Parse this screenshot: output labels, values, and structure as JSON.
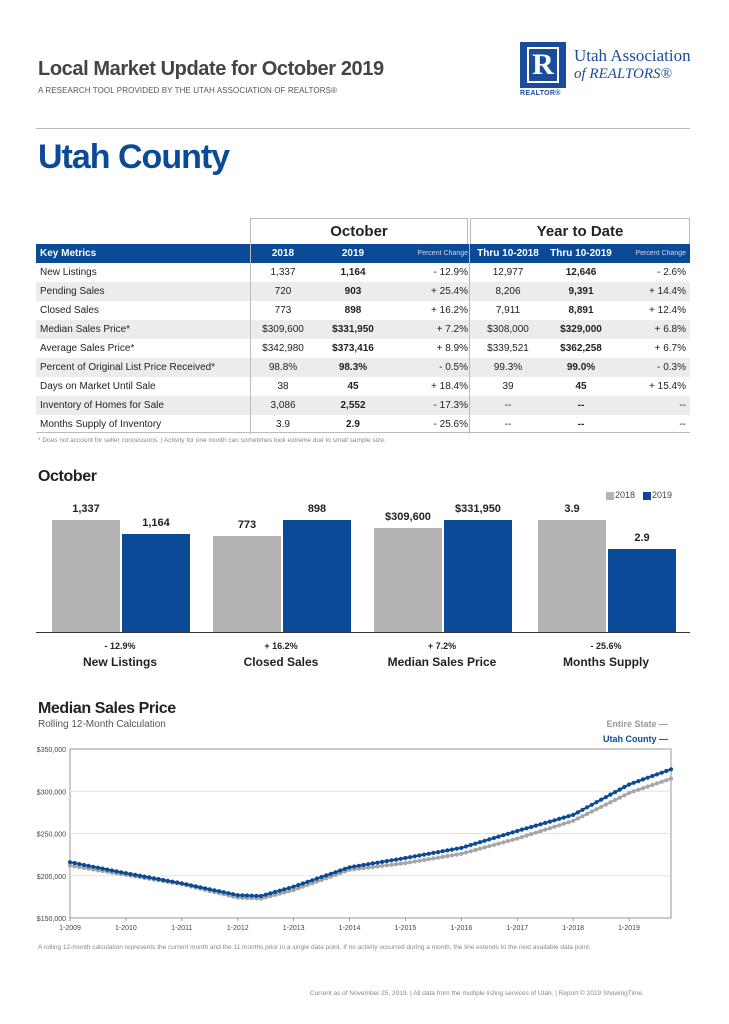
{
  "header": {
    "title": "Local Market Update for October 2019",
    "subtitle": "A RESEARCH TOOL PROVIDED BY THE UTAH ASSOCIATION OF REALTORS®",
    "county": "Utah County"
  },
  "logo": {
    "letter": "R",
    "realtor": "REALTOR®",
    "name_line1": "Utah Association",
    "name_line2": "of REALTORS®"
  },
  "table": {
    "group_october": "October",
    "group_ytd": "Year to Date",
    "headers": [
      "Key Metrics",
      "2018",
      "2019",
      "Percent Change",
      "Thru 10-2018",
      "Thru 10-2019",
      "Percent Change"
    ],
    "rows": [
      [
        "New Listings",
        "1,337",
        "1,164",
        "- 12.9%",
        "12,977",
        "12,646",
        "- 2.6%"
      ],
      [
        "Pending Sales",
        "720",
        "903",
        "+ 25.4%",
        "8,206",
        "9,391",
        "+ 14.4%"
      ],
      [
        "Closed Sales",
        "773",
        "898",
        "+ 16.2%",
        "7,911",
        "8,891",
        "+ 12.4%"
      ],
      [
        "Median Sales Price*",
        "$309,600",
        "$331,950",
        "+ 7.2%",
        "$308,000",
        "$329,000",
        "+ 6.8%"
      ],
      [
        "Average Sales Price*",
        "$342,980",
        "$373,416",
        "+ 8.9%",
        "$339,521",
        "$362,258",
        "+ 6.7%"
      ],
      [
        "Percent of Original List Price Received*",
        "98.8%",
        "98.3%",
        "- 0.5%",
        "99.3%",
        "99.0%",
        "- 0.3%"
      ],
      [
        "Days on Market Until Sale",
        "38",
        "45",
        "+ 18.4%",
        "39",
        "45",
        "+ 15.4%"
      ],
      [
        "Inventory of Homes for Sale",
        "3,086",
        "2,552",
        "- 17.3%",
        "--",
        "--",
        "--"
      ],
      [
        "Months Supply of Inventory",
        "3.9",
        "2.9",
        "- 25.6%",
        "--",
        "--",
        "--"
      ]
    ],
    "footnote": "* Does not account for seller concessions.  |  Activity for one month can sometimes look extreme due to small sample size."
  },
  "chart_data": [
    {
      "type": "bar",
      "title": "October",
      "legend": [
        "2018",
        "2019"
      ],
      "legend_position": "top-right",
      "colors": {
        "2018": "#b3b3b3",
        "2019": "#0b4a96"
      },
      "groups": [
        {
          "name": "New Listings",
          "values": [
            1337,
            1164
          ],
          "labels": [
            "1,337",
            "1,164"
          ],
          "pct": "- 12.9%"
        },
        {
          "name": "Closed Sales",
          "values": [
            773,
            898
          ],
          "labels": [
            "773",
            "898"
          ],
          "pct": "+ 16.2%"
        },
        {
          "name": "Median Sales Price",
          "values": [
            309600,
            331950
          ],
          "labels": [
            "$309,600",
            "$331,950"
          ],
          "pct": "+ 7.2%"
        },
        {
          "name": "Months Supply",
          "values": [
            3.9,
            2.9
          ],
          "labels": [
            "3.9",
            "2.9"
          ],
          "pct": "- 25.6%"
        }
      ]
    },
    {
      "type": "line",
      "title": "Median Sales Price",
      "subtitle": "Rolling 12-Month Calculation",
      "y_ticks": [
        "$350,000",
        "$300,000",
        "$250,000",
        "$200,000",
        "$150,000"
      ],
      "ylim": [
        150000,
        350000
      ],
      "x_ticks": [
        "1-2009",
        "1-2010",
        "1-2011",
        "1-2012",
        "1-2013",
        "1-2014",
        "1-2015",
        "1-2016",
        "1-2017",
        "1-2018",
        "1-2019"
      ],
      "legend_position": "top-right",
      "series": [
        {
          "name": "Entire State",
          "color": "#a6a6a6",
          "keypoints": [
            [
              "2009-01",
              212000
            ],
            [
              "2010-01",
              201000
            ],
            [
              "2011-01",
              190000
            ],
            [
              "2012-01",
              174000
            ],
            [
              "2012-06",
              173000
            ],
            [
              "2013-01",
              183000
            ],
            [
              "2014-01",
              207000
            ],
            [
              "2015-01",
              215000
            ],
            [
              "2016-01",
              226000
            ],
            [
              "2017-01",
              244000
            ],
            [
              "2018-01",
              265000
            ],
            [
              "2019-01",
              298000
            ],
            [
              "2019-10",
              315000
            ]
          ]
        },
        {
          "name": "Utah County",
          "color": "#0b4a96",
          "keypoints": [
            [
              "2009-01",
              216000
            ],
            [
              "2010-01",
              203000
            ],
            [
              "2011-01",
              191000
            ],
            [
              "2012-01",
              177000
            ],
            [
              "2012-06",
              176000
            ],
            [
              "2013-01",
              187000
            ],
            [
              "2014-01",
              210000
            ],
            [
              "2015-01",
              221000
            ],
            [
              "2016-01",
              233000
            ],
            [
              "2017-01",
              253000
            ],
            [
              "2018-01",
              272000
            ],
            [
              "2019-01",
              308000
            ],
            [
              "2019-10",
              326000
            ]
          ]
        }
      ]
    }
  ],
  "line_note": "A rolling 12-month calculation represents the current month and the 11 months prior in a single data point. If no activity occurred during a month, the line extends to the next available data point.",
  "footer": "Current as of November 25, 2019.  |  All data from the multiple listing services of Utah.  |  Report © 2019 ShowingTime."
}
